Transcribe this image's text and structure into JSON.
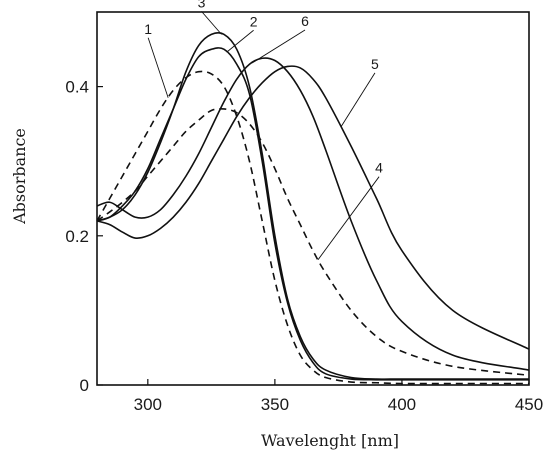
{
  "chart_data": {
    "type": "line",
    "title": "",
    "xlabel": "Wavelenght [nm]",
    "ylabel": "Absorbance",
    "xlim": [
      280,
      450
    ],
    "ylim": [
      0,
      0.5
    ],
    "x_ticks": [
      300,
      350,
      400,
      450
    ],
    "x_tick_labels": [
      "300",
      "350",
      "400",
      "450"
    ],
    "y_ticks": [
      0,
      0.2,
      0.4
    ],
    "y_tick_labels": [
      "0",
      "0.2",
      "0.4"
    ],
    "grid": false,
    "legend": "none (curves numbered 1–6 with leader lines)",
    "series": [
      {
        "name": "1",
        "style": "dashed",
        "color": "#111111",
        "x": [
          280,
          285,
          290,
          295,
          300,
          305,
          310,
          315,
          320,
          325,
          330,
          335,
          340,
          345,
          350,
          355,
          360,
          365,
          370,
          380,
          390,
          400,
          420,
          450
        ],
        "y": [
          0.22,
          0.25,
          0.28,
          0.31,
          0.34,
          0.37,
          0.395,
          0.412,
          0.42,
          0.417,
          0.4,
          0.36,
          0.3,
          0.22,
          0.14,
          0.08,
          0.04,
          0.02,
          0.01,
          0.004,
          0.003,
          0.002,
          0.002,
          0.002
        ]
      },
      {
        "name": "2",
        "style": "solid",
        "color": "#111111",
        "x": [
          280,
          285,
          290,
          295,
          300,
          305,
          310,
          315,
          320,
          325,
          330,
          335,
          340,
          345,
          350,
          355,
          360,
          365,
          370,
          380,
          390,
          400,
          420,
          450
        ],
        "y": [
          0.22,
          0.225,
          0.24,
          0.26,
          0.29,
          0.33,
          0.37,
          0.41,
          0.44,
          0.45,
          0.45,
          0.43,
          0.39,
          0.3,
          0.19,
          0.11,
          0.06,
          0.03,
          0.015,
          0.008,
          0.007,
          0.007,
          0.007,
          0.007
        ]
      },
      {
        "name": "3",
        "style": "solid",
        "color": "#111111",
        "x": [
          280,
          285,
          290,
          295,
          300,
          305,
          310,
          315,
          320,
          325,
          330,
          335,
          340,
          345,
          350,
          355,
          360,
          365,
          370,
          380,
          390,
          400,
          420,
          450
        ],
        "y": [
          0.22,
          0.225,
          0.235,
          0.255,
          0.285,
          0.325,
          0.37,
          0.42,
          0.455,
          0.47,
          0.47,
          0.45,
          0.4,
          0.31,
          0.2,
          0.115,
          0.065,
          0.035,
          0.02,
          0.01,
          0.008,
          0.008,
          0.008,
          0.008
        ]
      },
      {
        "name": "4",
        "style": "dashed",
        "color": "#111111",
        "x": [
          280,
          285,
          290,
          295,
          300,
          305,
          310,
          315,
          320,
          325,
          330,
          335,
          340,
          345,
          350,
          355,
          360,
          365,
          370,
          380,
          390,
          400,
          420,
          450
        ],
        "y": [
          0.22,
          0.232,
          0.245,
          0.26,
          0.28,
          0.3,
          0.32,
          0.34,
          0.355,
          0.368,
          0.37,
          0.365,
          0.35,
          0.325,
          0.29,
          0.25,
          0.215,
          0.18,
          0.15,
          0.1,
          0.065,
          0.045,
          0.025,
          0.013
        ]
      },
      {
        "name": "5",
        "style": "solid",
        "color": "#111111",
        "x": [
          280,
          285,
          290,
          295,
          300,
          305,
          310,
          315,
          320,
          325,
          330,
          335,
          340,
          345,
          350,
          355,
          360,
          365,
          370,
          380,
          390,
          400,
          420,
          450
        ],
        "y": [
          0.22,
          0.215,
          0.205,
          0.197,
          0.2,
          0.21,
          0.225,
          0.245,
          0.27,
          0.3,
          0.33,
          0.36,
          0.385,
          0.405,
          0.42,
          0.427,
          0.425,
          0.41,
          0.385,
          0.32,
          0.25,
          0.18,
          0.1,
          0.048
        ]
      },
      {
        "name": "6",
        "style": "solid",
        "color": "#111111",
        "x": [
          280,
          285,
          290,
          295,
          300,
          305,
          310,
          315,
          320,
          325,
          330,
          335,
          340,
          345,
          350,
          355,
          360,
          365,
          370,
          380,
          390,
          400,
          420,
          450
        ],
        "y": [
          0.24,
          0.245,
          0.235,
          0.225,
          0.225,
          0.235,
          0.255,
          0.28,
          0.31,
          0.345,
          0.38,
          0.41,
          0.43,
          0.438,
          0.435,
          0.42,
          0.395,
          0.36,
          0.315,
          0.22,
          0.14,
          0.085,
          0.04,
          0.02
        ]
      }
    ],
    "annotations": [
      {
        "text": "1",
        "series": "1",
        "at_x": 308
      },
      {
        "text": "2",
        "series": "2",
        "at_x": 331
      },
      {
        "text": "3",
        "series": "3",
        "at_x": 329
      },
      {
        "text": "4",
        "series": "4",
        "at_x": 367
      },
      {
        "text": "5",
        "series": "5",
        "at_x": 376
      },
      {
        "text": "6",
        "series": "6",
        "at_x": 341
      }
    ]
  }
}
